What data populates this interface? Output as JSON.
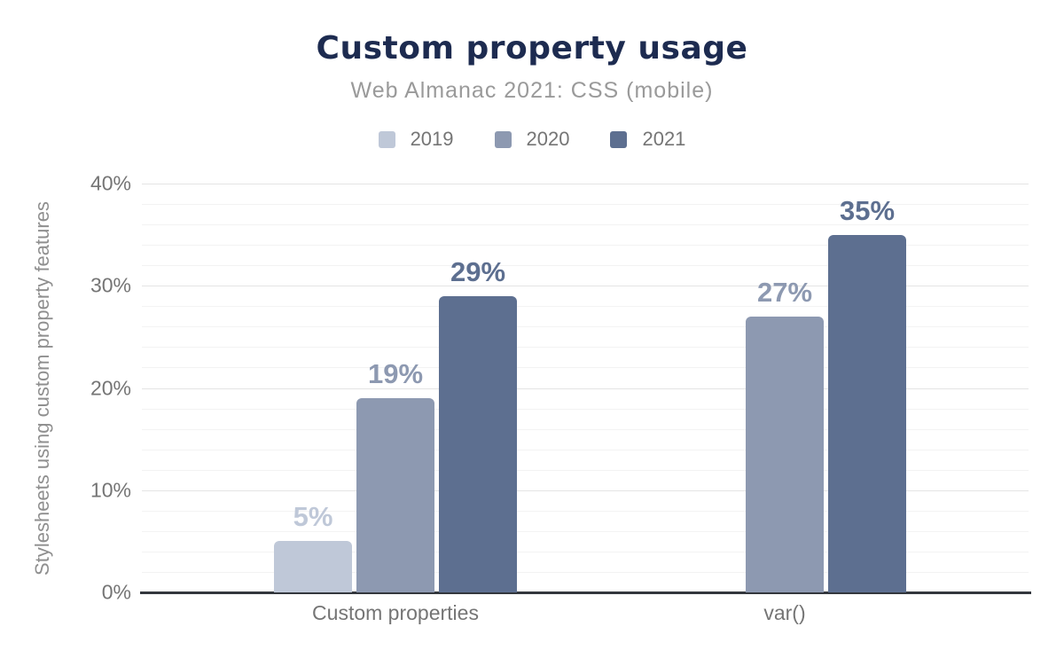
{
  "title": "Custom property usage",
  "subtitle": "Web Almanac 2021: CSS (mobile)",
  "colors": {
    "title_text": "#1d2b50",
    "subtitle_text": "#9a9a9a",
    "axis_text": "#757575",
    "y_axis_title_text": "#8f8f8f",
    "axis_line": "#33373d",
    "grid_major": "#e4e4e4",
    "grid_minor": "#f3f3f3",
    "background": "#ffffff"
  },
  "chart_data": {
    "type": "bar",
    "title": "Custom property usage",
    "subtitle": "Web Almanac 2021: CSS (mobile)",
    "categories": [
      "Custom properties",
      "var()"
    ],
    "series": [
      {
        "name": "2019",
        "color": "#bfc8d8",
        "values": [
          5,
          null
        ],
        "labels": [
          "5%",
          null
        ]
      },
      {
        "name": "2020",
        "color": "#8d99b1",
        "values": [
          19,
          27
        ],
        "labels": [
          "19%",
          "27%"
        ]
      },
      {
        "name": "2021",
        "color": "#5d6f90",
        "values": [
          29,
          35
        ],
        "labels": [
          "29%",
          "35%"
        ]
      }
    ],
    "xlabel": "",
    "ylabel": "Stylesheets using custom property features",
    "ylim": [
      0,
      40
    ],
    "yticks": [
      {
        "value": 0,
        "label": "0%"
      },
      {
        "value": 10,
        "label": "10%"
      },
      {
        "value": 20,
        "label": "20%"
      },
      {
        "value": 30,
        "label": "30%"
      },
      {
        "value": 40,
        "label": "40%"
      }
    ],
    "minor_grid_step": 2,
    "grid": "horizontal",
    "legend_position": "top",
    "legend": [
      "2019",
      "2020",
      "2021"
    ]
  }
}
